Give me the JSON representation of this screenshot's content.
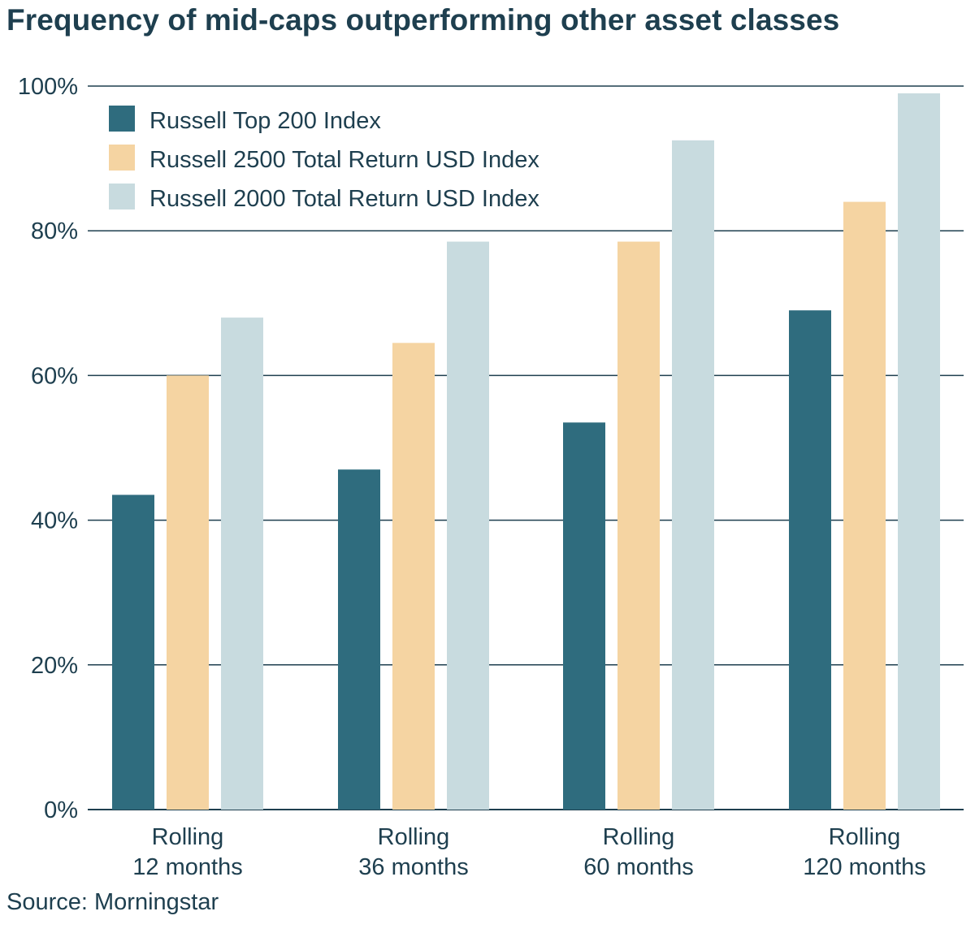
{
  "title": "Frequency of mid-caps outperforming other asset classes",
  "source": "Source: Morningstar",
  "colors": {
    "text": "#1e3f4f",
    "grid": "#1e3f4f"
  },
  "chart_data": {
    "type": "bar",
    "title": "Frequency of mid-caps outperforming other asset classes",
    "xlabel": "",
    "ylabel": "",
    "ylim": [
      0,
      100
    ],
    "yticks": [
      0,
      20,
      40,
      60,
      80,
      100
    ],
    "ytick_labels": [
      "0%",
      "20%",
      "40%",
      "60%",
      "80%",
      "100%"
    ],
    "grid": true,
    "legend_position": "top-left",
    "categories": [
      [
        "Rolling",
        "12 months"
      ],
      [
        "Rolling",
        "36 months"
      ],
      [
        "Rolling",
        "60 months"
      ],
      [
        "Rolling",
        "120 months"
      ]
    ],
    "series": [
      {
        "name": "Russell Top 200 Index",
        "color": "#2f6c7e",
        "values": [
          43.5,
          47,
          53.5,
          69
        ]
      },
      {
        "name": "Russell 2500 Total Return USD Index",
        "color": "#f5d4a2",
        "values": [
          60,
          64.5,
          78.5,
          84
        ]
      },
      {
        "name": "Russell 2000 Total Return USD Index",
        "color": "#c8dbdf",
        "values": [
          68,
          78.5,
          92.5,
          99
        ]
      }
    ]
  }
}
